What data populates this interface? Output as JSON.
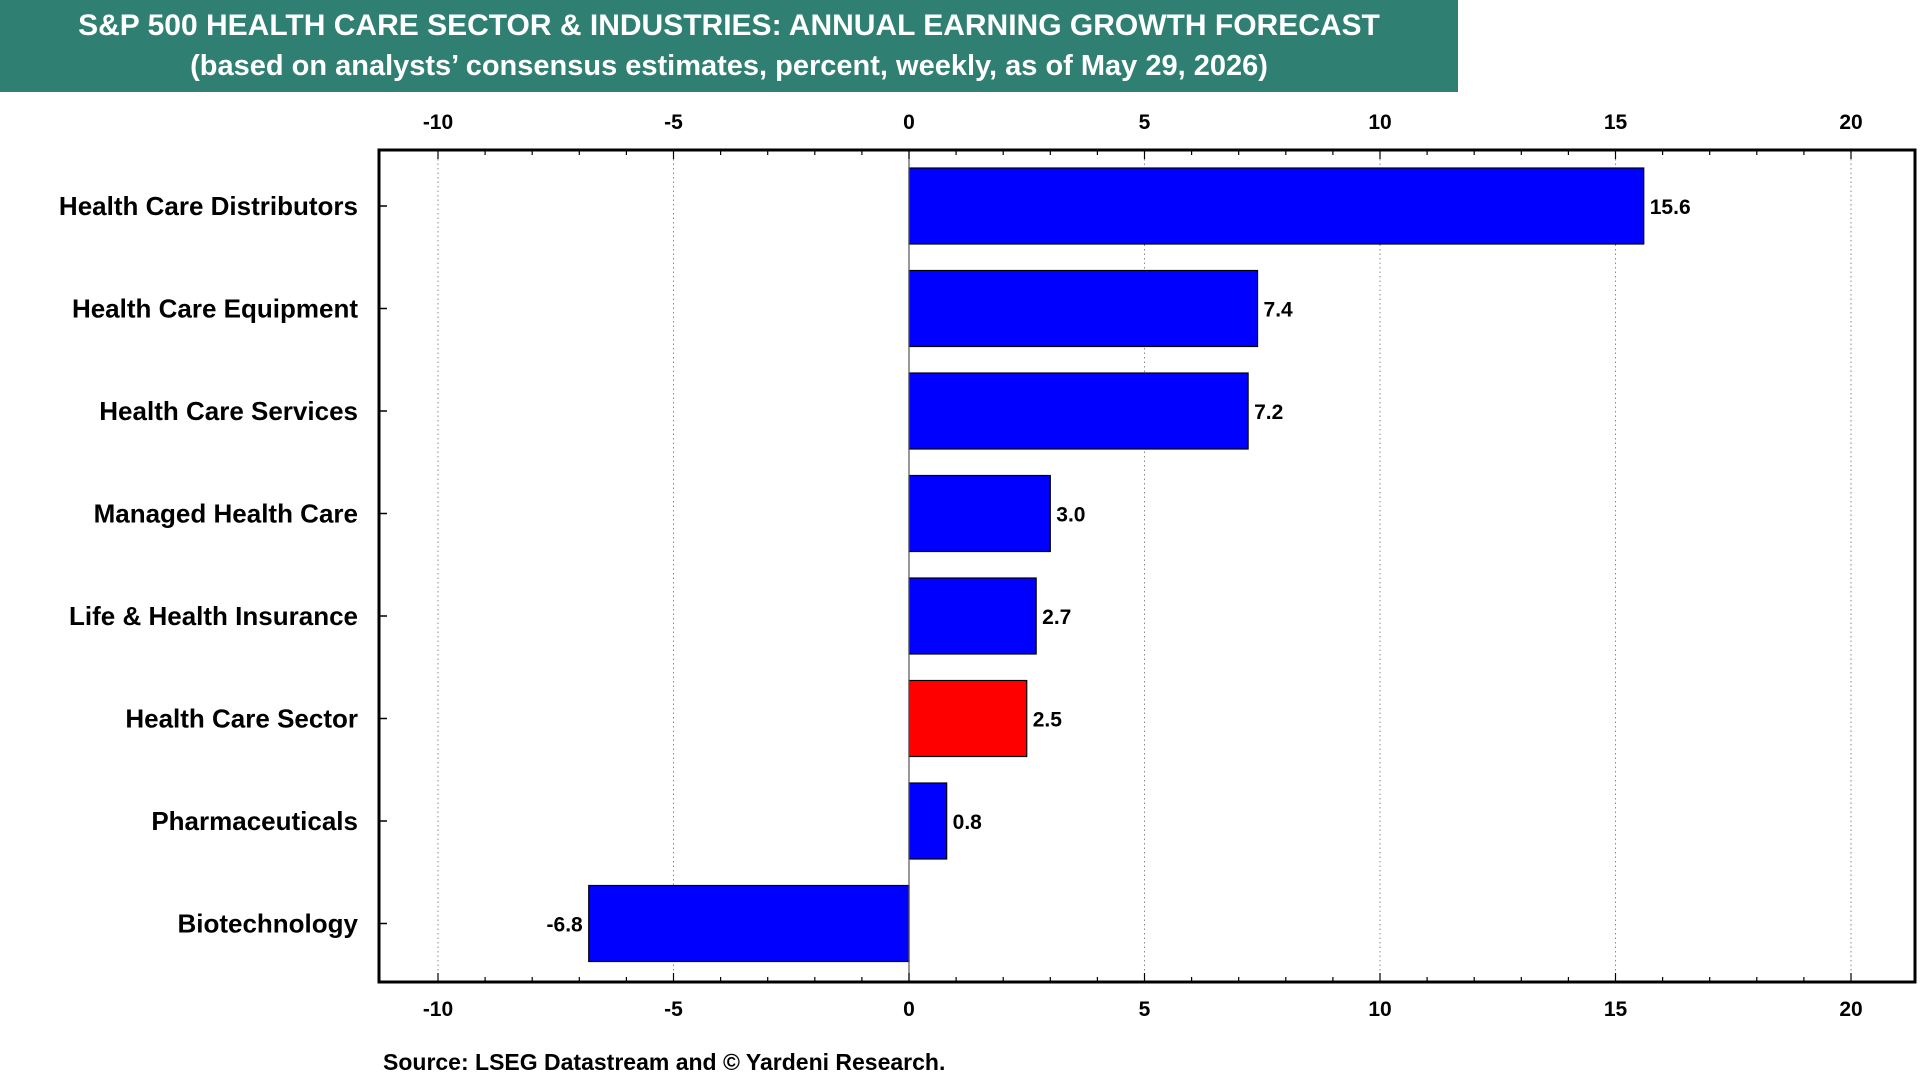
{
  "header": {
    "title": "S&P 500 HEALTH CARE SECTOR & INDUSTRIES: ANNUAL EARNING GROWTH FORECAST",
    "subtitle": "(based on analysts’ consensus estimates, percent, weekly, as of May 29, 2026)"
  },
  "footer": {
    "source": "Source: LSEG Datastream and © Yardeni Research."
  },
  "colors": {
    "title_background": "#2f7f73",
    "bar_default": "#0000ff",
    "bar_highlight": "#ff0000"
  },
  "chart_data": {
    "type": "bar",
    "orientation": "horizontal",
    "categories": [
      "Health Care Distributors",
      "Health Care Equipment",
      "Health Care Services",
      "Managed Health Care",
      "Life & Health Insurance",
      "Health Care Sector",
      "Pharmaceuticals",
      "Biotechnology"
    ],
    "values": [
      15.6,
      7.4,
      7.2,
      3.0,
      2.7,
      2.5,
      0.8,
      -6.8
    ],
    "value_labels": [
      "15.6",
      "7.4",
      "7.2",
      "3.0",
      "2.7",
      "2.5",
      "0.8",
      "-6.8"
    ],
    "highlight_category": "Health Care Sector",
    "xlim": [
      -10,
      20
    ],
    "x_ticks": [
      -10,
      -5,
      0,
      5,
      10,
      15,
      20
    ],
    "x_tick_labels": [
      "-10",
      "-5",
      "0",
      "5",
      "10",
      "15",
      "20"
    ],
    "x_axis_position": "top and bottom",
    "grid": "vertical dotted",
    "legend": "none"
  }
}
